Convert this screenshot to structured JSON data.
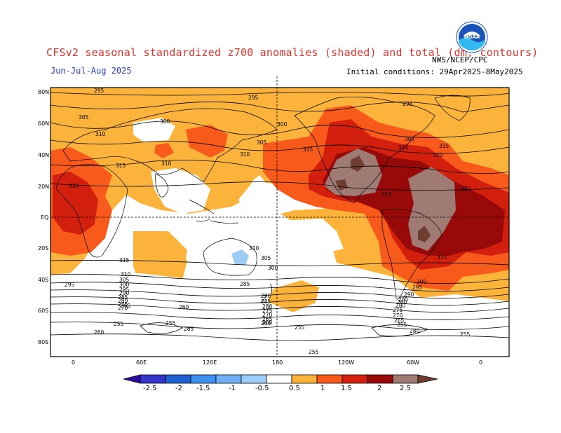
{
  "header": {
    "title": "CFSv2 seasonal standardized z700 anomalies (shaded) and total (dm; contours)",
    "period": "Jun-Jul-Aug 2025",
    "initial_conditions": "Initial conditions: 29Apr2025-8May2025",
    "agency": "NWS/NCEP/CPC",
    "logo_text": "NOAA"
  },
  "map": {
    "lat_labels": [
      "80N",
      "60N",
      "40N",
      "20N",
      "EQ",
      "20S",
      "40S",
      "60S",
      "80S"
    ],
    "lon_labels": [
      "0",
      "60E",
      "120E",
      "180",
      "120W",
      "60W",
      "0"
    ],
    "contour_labels": [
      "295",
      "295",
      "295",
      "305",
      "300",
      "300",
      "310",
      "305",
      "310",
      "315",
      "315",
      "310",
      "305",
      "310",
      "320",
      "315",
      "320",
      "315",
      "320",
      "315",
      "315",
      "310",
      "305",
      "300",
      "295",
      "310",
      "305",
      "300",
      "295",
      "290",
      "285",
      "280",
      "275",
      "270",
      "265",
      "260",
      "255",
      "260",
      "285",
      "285",
      "290",
      "285",
      "280",
      "275",
      "270",
      "265",
      "260",
      "255",
      "300",
      "295",
      "290",
      "285",
      "280",
      "275",
      "270",
      "265",
      "260",
      "255",
      "255",
      "255",
      "280",
      "260",
      "255"
    ]
  },
  "colorbar": {
    "ticks": [
      "-2.5",
      "-2",
      "-1.5",
      "-1",
      "-0.5",
      "0.5",
      "1",
      "1.5",
      "2",
      "2.5"
    ],
    "colors": [
      "#2c0aa0",
      "#3434c8",
      "#1f5fcf",
      "#3f8ff0",
      "#9ccdf7",
      "#ffffff",
      "#fbb33c",
      "#f75a1a",
      "#d3200e",
      "#98090a",
      "#a07b74",
      "#6e3e30"
    ]
  }
}
